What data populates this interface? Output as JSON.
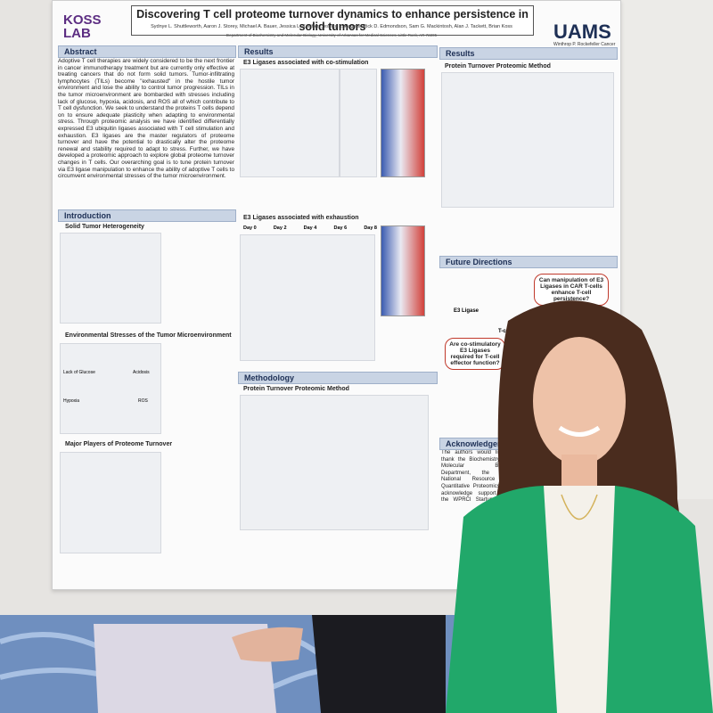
{
  "poster": {
    "logo": "KOSS LAB",
    "title": "Discovering T cell proteome turnover dynamics to enhance persistence in solid tumors",
    "authors": "Sydnye L. Shuttleworth, Aaron J. Storey, Michael A. Bauer, Jessica L. Kelliher, Jessica L. Rogers, Rick D. Edmondson, Sam G. Mackintosh, Alan J. Tackett, Brian Koss",
    "affiliation": "Department of Biochemistry and Molecular Biology, University of Arkansas for Medical Sciences, Little Rock, AR 72205",
    "institution": "UAMS",
    "institution_sub": "Winthrop P. Rockefeller Cancer Institute",
    "abstract_heading": "Abstract",
    "abstract": "Adoptive T cell therapies are widely considered to be the next frontier in cancer immunotherapy treatment but are currently only effective at treating cancers that do not form solid tumors. Tumor-infiltrating lymphocytes (TILs) become \"exhausted\" in the hostile tumor environment and lose the ability to control tumor progression. TILs in the tumor microenvironment are bombarded with stresses including lack of glucose, hypoxia, acidosis, and ROS all of which contribute to T cell dysfunction. We seek to understand the proteins T cells depend on to ensure adequate plasticity when adapting to environmental stress. Through proteomic analysis we have identified differentially expressed E3 ubiquitin ligases associated with T cell stimulation and exhaustion. E3 ligases are the master regulators of proteome turnover and have the potential to drastically alter the proteome renewal and stability required to adapt to stress. Further, we have developed a proteomic approach to explore global proteome turnover changes in T cells. Our overarching goal is to tune protein turnover via E3 ligase manipulation to enhance the ability of adoptive T cells to circumvent environmental stresses of the tumor microenvironment.",
    "introduction_heading": "Introduction",
    "intro_sub1": "Solid Tumor Heterogeneity",
    "intro_sub2": "Environmental Stresses of the Tumor Microenvironment",
    "intro_sub3": "Major Players of Proteome Turnover",
    "stress_labels": [
      "Lack of Glucose",
      "Acidosis",
      "Hypoxia",
      "ROS"
    ],
    "results_heading": "Results",
    "results_sub1": "E3 Ligases associated with co-stimulation",
    "results_sub2": "E3 Ligases associated with exhaustion",
    "day_labels": [
      "Day 0",
      "Day 2",
      "Day 4",
      "Day 6",
      "Day 8"
    ],
    "methodology_heading": "Methodology",
    "method_sub": "Protein Turnover Proteomic Method",
    "results2_heading": "Results",
    "results2_sub": "Protein Turnover Proteomic Method",
    "future_heading": "Future Directions",
    "future_q1": "Can manipulation of E3 Ligases in CAR T-cells enhance T-cell persistence?",
    "future_q2": "Are co-stimulatory E3 Ligases required for T-cell effector function?",
    "future_e3": "E3 Ligase",
    "future_tcell": "T-cell",
    "ack_heading": "Acknowledgements",
    "ack_text": "The authors would like to thank the Biochemistry and Molecular Biology Department, the IDeA National Resource for Quantitative Proteomics. We acknowledge support from the WPRCI Startup Funds (Koss) and the Voucher Program."
  }
}
